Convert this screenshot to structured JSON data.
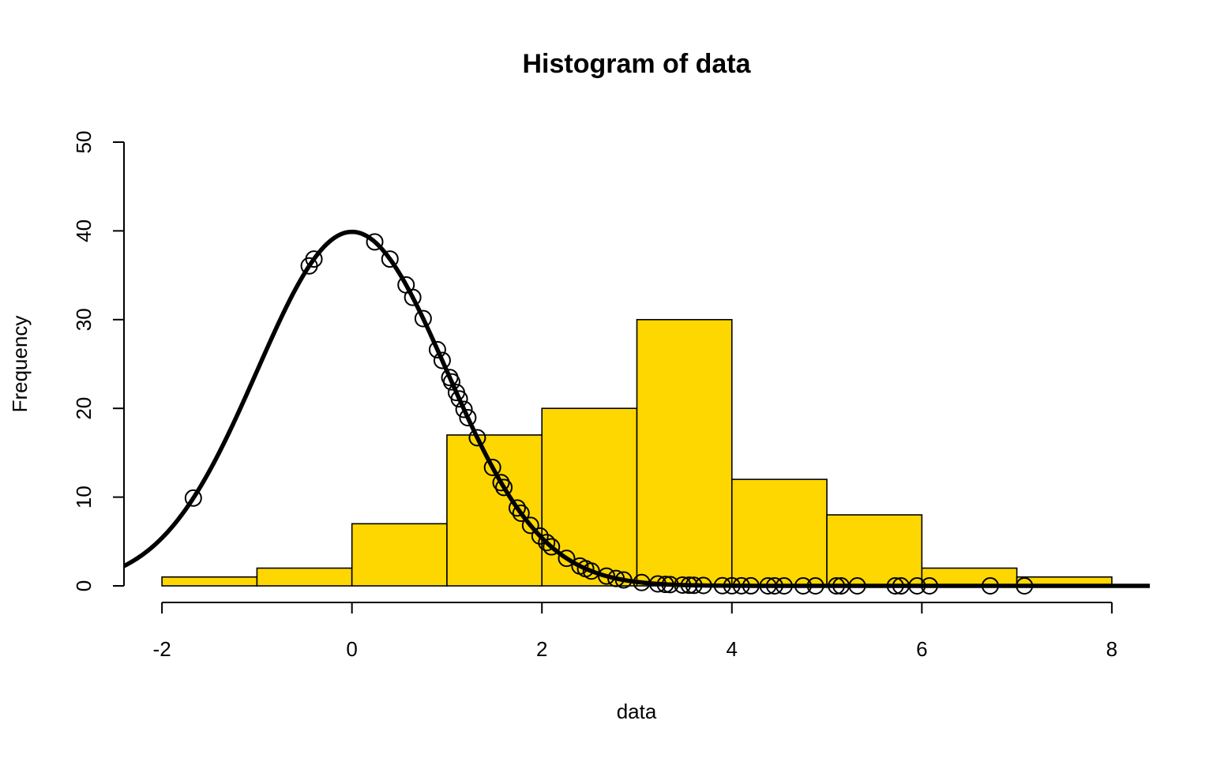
{
  "chart_data": {
    "type": "bar",
    "title": "Histogram of data",
    "xlabel": "data",
    "ylabel": "Frequency",
    "xlim": [
      -2.4,
      8.4
    ],
    "ylim": [
      0,
      50
    ],
    "x_ticks": [
      -2,
      0,
      2,
      4,
      6,
      8
    ],
    "y_ticks": [
      0,
      10,
      20,
      30,
      40,
      50
    ],
    "bar_color": "#FFD700",
    "histogram": {
      "breaks": [
        -2,
        -1,
        0,
        1,
        2,
        3,
        4,
        5,
        6,
        7,
        8
      ],
      "counts": [
        1,
        2,
        7,
        17,
        20,
        30,
        12,
        8,
        2,
        1
      ]
    },
    "curve": {
      "description": "normal density scaled by 100, mean 0, sd 1",
      "mean": 0,
      "sd": 1,
      "scale": 100
    },
    "points_x": [
      -1.67,
      -0.45,
      -0.4,
      0.24,
      0.4,
      0.57,
      0.64,
      0.75,
      0.9,
      0.95,
      1.03,
      1.05,
      1.1,
      1.13,
      1.18,
      1.22,
      1.32,
      1.48,
      1.57,
      1.6,
      1.74,
      1.78,
      1.88,
      1.98,
      2.05,
      2.1,
      2.26,
      2.4,
      2.46,
      2.52,
      2.68,
      2.78,
      2.86,
      3.05,
      3.22,
      3.3,
      3.35,
      3.48,
      3.55,
      3.6,
      3.7,
      3.9,
      4.0,
      4.1,
      4.2,
      4.38,
      4.45,
      4.55,
      4.75,
      4.88,
      5.1,
      5.15,
      5.32,
      5.72,
      5.78,
      5.95,
      6.08,
      6.72,
      7.08
    ]
  }
}
